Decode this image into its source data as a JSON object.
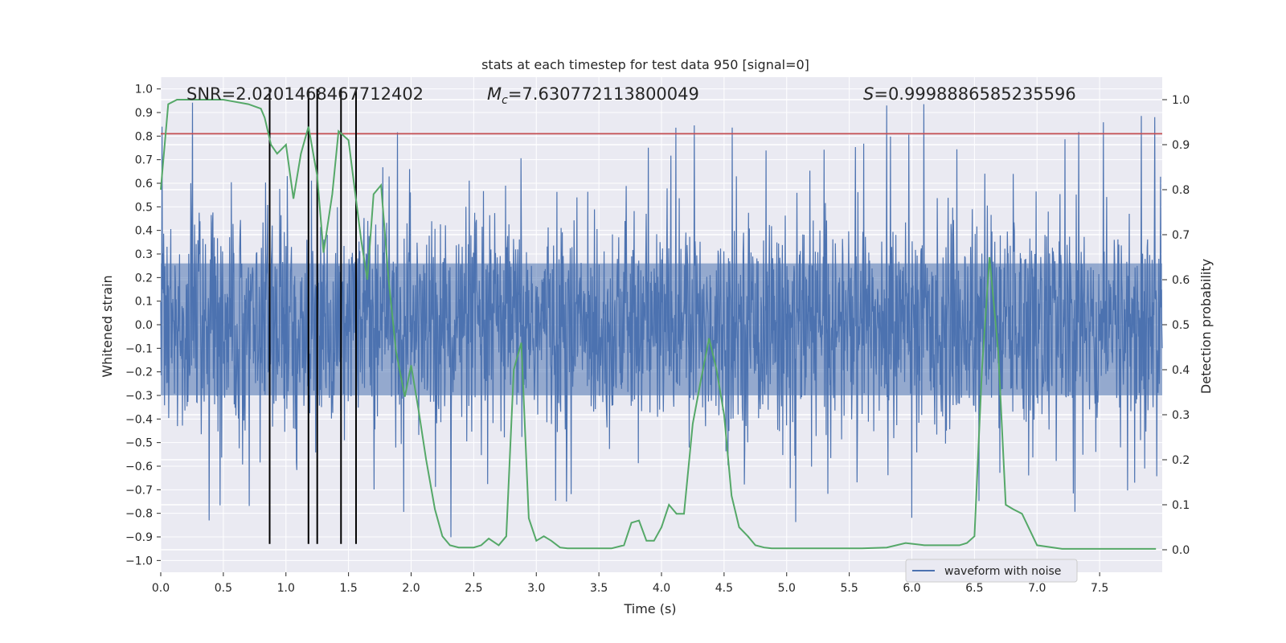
{
  "chart_data": {
    "type": "line",
    "title": "stats at each timestep for test data 950 [signal=0]",
    "xlabel": "Time (s)",
    "ylabel_left": "Whitened strain",
    "ylabel_right": "Detection probability",
    "xlim": [
      0.0,
      8.0
    ],
    "ylim_left": [
      -1.05,
      1.05
    ],
    "ylim_right": [
      -0.05,
      1.05
    ],
    "x_ticks": [
      "0.0",
      "0.5",
      "1.0",
      "1.5",
      "2.0",
      "2.5",
      "3.0",
      "3.5",
      "4.0",
      "4.5",
      "5.0",
      "5.5",
      "6.0",
      "6.5",
      "7.0",
      "7.5"
    ],
    "y_ticks_left": [
      "1.0",
      "0.9",
      "0.8",
      "0.7",
      "0.6",
      "0.5",
      "0.4",
      "0.3",
      "0.2",
      "0.1",
      "0.0",
      "−0.1",
      "−0.2",
      "−0.3",
      "−0.4",
      "−0.5",
      "−0.6",
      "−0.7",
      "−0.8",
      "−0.9",
      "−1.0"
    ],
    "y_ticks_right": [
      "1.0",
      "0.9",
      "0.8",
      "0.7",
      "0.6",
      "0.5",
      "0.4",
      "0.3",
      "0.2",
      "0.1",
      "0.0"
    ],
    "grid": true,
    "legend_placement": "lower-right",
    "annotations": {
      "snr": "SNR=2.0201468467712402",
      "mc_symbol": "M",
      "mc_sub": "c",
      "mc_value": "=7.630772113800049",
      "s_symbol": "S",
      "s_value": "=0.9998886585235596"
    },
    "series": [
      {
        "name": "waveform with noise",
        "axis": "left",
        "color": "#4c72b0",
        "kind": "noise",
        "typical_amplitude": 0.3,
        "spike_max": 1.0,
        "spike_min": -1.0
      },
      {
        "axis": "right",
        "color": "#55a868",
        "x": [
          0.0,
          0.06,
          0.13,
          0.2,
          0.3,
          0.4,
          0.5,
          0.6,
          0.7,
          0.8,
          0.83,
          0.88,
          0.93,
          1.0,
          1.06,
          1.12,
          1.18,
          1.25,
          1.3,
          1.37,
          1.42,
          1.5,
          1.55,
          1.6,
          1.65,
          1.7,
          1.76,
          1.82,
          1.88,
          1.95,
          2.0,
          2.06,
          2.12,
          2.19,
          2.25,
          2.31,
          2.38,
          2.45,
          2.5,
          2.56,
          2.62,
          2.7,
          2.76,
          2.82,
          2.88,
          2.94,
          3.0,
          3.06,
          3.12,
          3.19,
          3.25,
          3.31,
          3.38,
          3.5,
          3.6,
          3.7,
          3.76,
          3.82,
          3.88,
          3.94,
          4.0,
          4.06,
          4.12,
          4.18,
          4.25,
          4.31,
          4.38,
          4.44,
          4.5,
          4.56,
          4.62,
          4.69,
          4.75,
          4.82,
          4.88,
          4.94,
          5.0,
          5.2,
          5.4,
          5.6,
          5.8,
          5.95,
          6.1,
          6.3,
          6.38,
          6.44,
          6.5,
          6.56,
          6.62,
          6.69,
          6.75,
          6.81,
          6.88,
          7.0,
          7.2,
          7.4,
          7.6,
          7.8,
          7.95
        ],
        "values": [
          0.8,
          0.99,
          1.0,
          1.0,
          1.0,
          1.0,
          1.0,
          0.995,
          0.99,
          0.98,
          0.96,
          0.9,
          0.88,
          0.9,
          0.78,
          0.88,
          0.94,
          0.83,
          0.66,
          0.79,
          0.93,
          0.91,
          0.8,
          0.69,
          0.6,
          0.79,
          0.81,
          0.6,
          0.44,
          0.34,
          0.41,
          0.31,
          0.2,
          0.09,
          0.03,
          0.01,
          0.005,
          0.005,
          0.005,
          0.01,
          0.025,
          0.01,
          0.03,
          0.4,
          0.46,
          0.07,
          0.02,
          0.03,
          0.02,
          0.005,
          0.003,
          0.003,
          0.003,
          0.003,
          0.003,
          0.01,
          0.06,
          0.065,
          0.02,
          0.02,
          0.05,
          0.1,
          0.08,
          0.08,
          0.28,
          0.37,
          0.47,
          0.4,
          0.3,
          0.12,
          0.05,
          0.03,
          0.01,
          0.005,
          0.003,
          0.003,
          0.003,
          0.003,
          0.003,
          0.003,
          0.005,
          0.015,
          0.01,
          0.01,
          0.01,
          0.015,
          0.03,
          0.4,
          0.65,
          0.44,
          0.1,
          0.09,
          0.08,
          0.01,
          0.002,
          0.002,
          0.002,
          0.002,
          0.002
        ]
      }
    ],
    "threshold_line": {
      "axis": "left",
      "value": 0.81,
      "color": "#c44e52"
    },
    "vertical_markers": {
      "color": "#000000",
      "x": [
        0.87,
        1.18,
        1.25,
        1.44,
        1.56
      ],
      "from": -0.93,
      "to": 1.0
    }
  }
}
